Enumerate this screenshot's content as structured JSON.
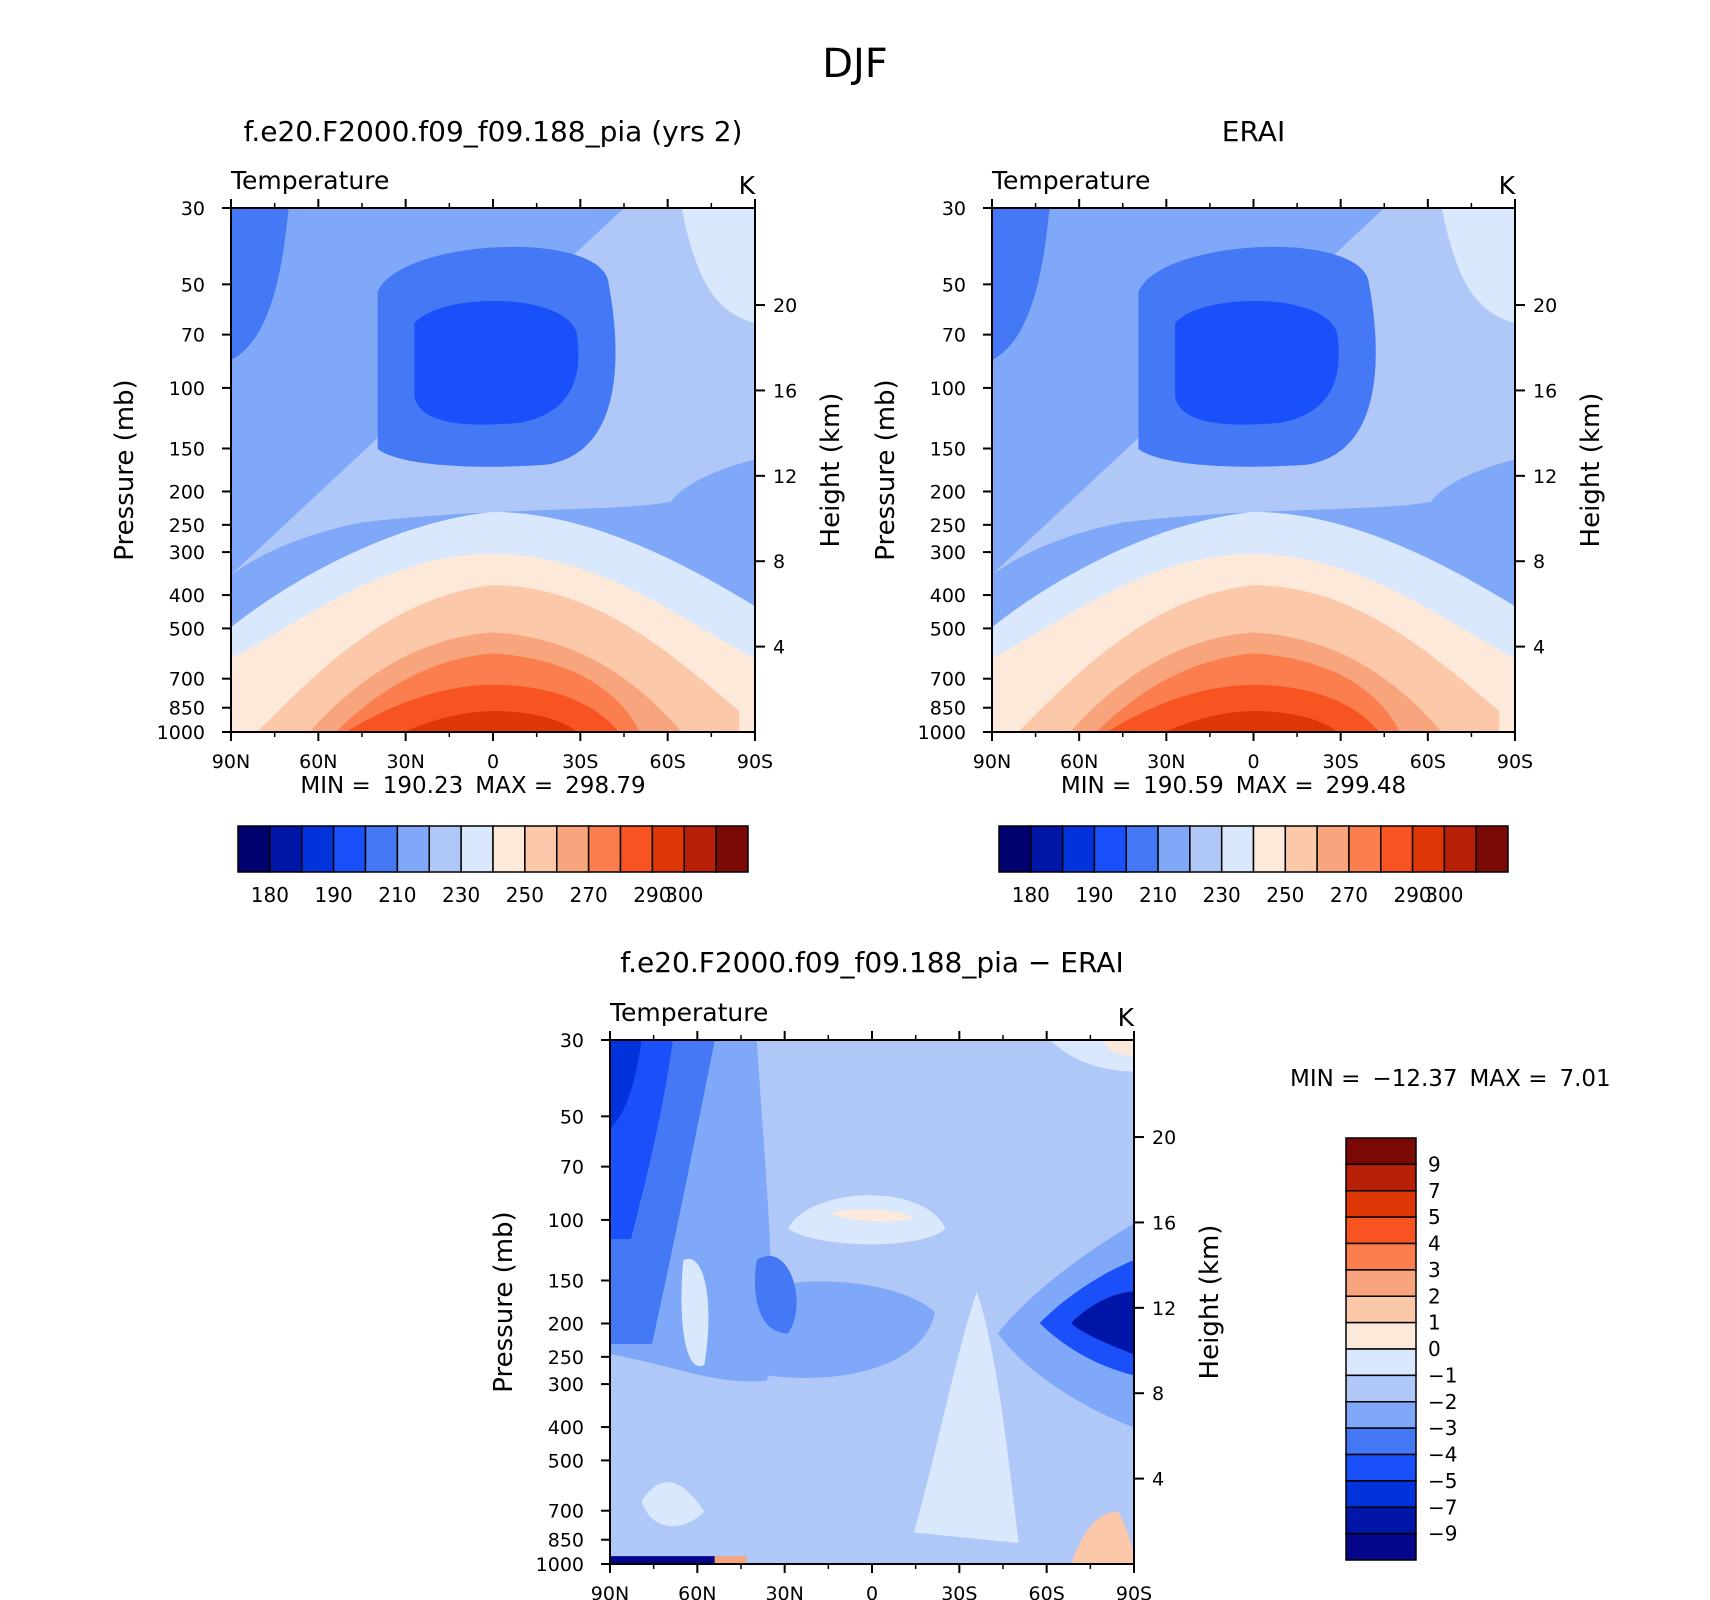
{
  "figure": {
    "title": "DJF"
  },
  "colors": {
    "abs_palette": [
      "#00006e",
      "#0016a8",
      "#0232dc",
      "#1a50fa",
      "#4478f5",
      "#7fa8f8",
      "#b0c8f8",
      "#d9e8fc",
      "#fde9da",
      "#fbc8aa",
      "#f8a47c",
      "#fa7e4e",
      "#f85422",
      "#df3606",
      "#b82008",
      "#7b0a06"
    ],
    "diff_palette": [
      "#06068a",
      "#0016a8",
      "#0232dc",
      "#1a50fa",
      "#4478f5",
      "#7fa8f8",
      "#b0c8f8",
      "#d9e8fc",
      "#fde9da",
      "#fbc8aa",
      "#f8a47c",
      "#fa7e4e",
      "#f85422",
      "#df3606",
      "#b82008",
      "#7b0a06"
    ]
  },
  "chart_data": [
    {
      "type": "contour",
      "id": "model",
      "title": "f.e20.F2000.f09_f09.188_pia (yrs 2)",
      "variable": "Temperature",
      "units": "K",
      "xlabel": "",
      "ylabel": "Pressure (mb)",
      "ylabel_right": "Height (km)",
      "x_ticks": [
        90,
        60,
        30,
        0,
        -30,
        -60,
        -90
      ],
      "x_tick_labels": [
        "90N",
        "60N",
        "30N",
        "0",
        "30S",
        "60S",
        "90S"
      ],
      "pressure_ticks": [
        30,
        50,
        70,
        100,
        150,
        200,
        250,
        300,
        400,
        500,
        700,
        850,
        1000
      ],
      "height_ticks": [
        20,
        16,
        12,
        8,
        4
      ],
      "xlim": [
        90,
        -90
      ],
      "ylim": [
        1000,
        30
      ],
      "min_label": "MIN =",
      "min_value": "190.23",
      "max_label": "MAX =",
      "max_value": "298.79",
      "levels": [
        180,
        190,
        200,
        210,
        220,
        230,
        240,
        250,
        260,
        270,
        280,
        290,
        300
      ],
      "colorbar_labels": [
        "180",
        "190",
        "210",
        "230",
        "250",
        "270",
        "290",
        "300"
      ],
      "min": 190.23,
      "max": 298.79
    },
    {
      "type": "contour",
      "id": "obs",
      "title": "ERAI",
      "variable": "Temperature",
      "units": "K",
      "xlabel": "",
      "ylabel": "Pressure (mb)",
      "ylabel_right": "Height (km)",
      "x_ticks": [
        90,
        60,
        30,
        0,
        -30,
        -60,
        -90
      ],
      "x_tick_labels": [
        "90N",
        "60N",
        "30N",
        "0",
        "30S",
        "60S",
        "90S"
      ],
      "pressure_ticks": [
        30,
        50,
        70,
        100,
        150,
        200,
        250,
        300,
        400,
        500,
        700,
        850,
        1000
      ],
      "height_ticks": [
        20,
        16,
        12,
        8,
        4
      ],
      "xlim": [
        90,
        -90
      ],
      "ylim": [
        1000,
        30
      ],
      "min_label": "MIN =",
      "min_value": "190.59",
      "max_label": "MAX =",
      "max_value": "299.48",
      "levels": [
        180,
        190,
        200,
        210,
        220,
        230,
        240,
        250,
        260,
        270,
        280,
        290,
        300
      ],
      "colorbar_labels": [
        "180",
        "190",
        "210",
        "230",
        "250",
        "270",
        "290",
        "300"
      ],
      "min": 190.59,
      "max": 299.48
    },
    {
      "type": "contour",
      "id": "diff",
      "title": "f.e20.F2000.f09_f09.188_pia − ERAI",
      "variable": "Temperature",
      "units": "K",
      "xlabel": "",
      "ylabel": "Pressure (mb)",
      "ylabel_right": "Height (km)",
      "x_ticks": [
        90,
        60,
        30,
        0,
        -30,
        -60,
        -90
      ],
      "x_tick_labels": [
        "90N",
        "60N",
        "30N",
        "0",
        "30S",
        "60S",
        "90S"
      ],
      "pressure_ticks": [
        30,
        50,
        70,
        100,
        150,
        200,
        250,
        300,
        400,
        500,
        700,
        850,
        1000
      ],
      "height_ticks": [
        20,
        16,
        12,
        8,
        4
      ],
      "xlim": [
        90,
        -90
      ],
      "ylim": [
        1000,
        30
      ],
      "min_label": "MIN =",
      "min_value": "−12.37",
      "max_label": "MAX =",
      "max_value": "7.01",
      "levels": [
        -9,
        -7,
        -5,
        -4,
        -3,
        -2,
        -1,
        0,
        1,
        2,
        3,
        4,
        5,
        7,
        9
      ],
      "colorbar_labels": [
        "9",
        "7",
        "5",
        "4",
        "3",
        "2",
        "1",
        "0",
        "−1",
        "−2",
        "−3",
        "−4",
        "−5",
        "−7",
        "−9"
      ],
      "min": -12.37,
      "max": 7.01
    }
  ]
}
